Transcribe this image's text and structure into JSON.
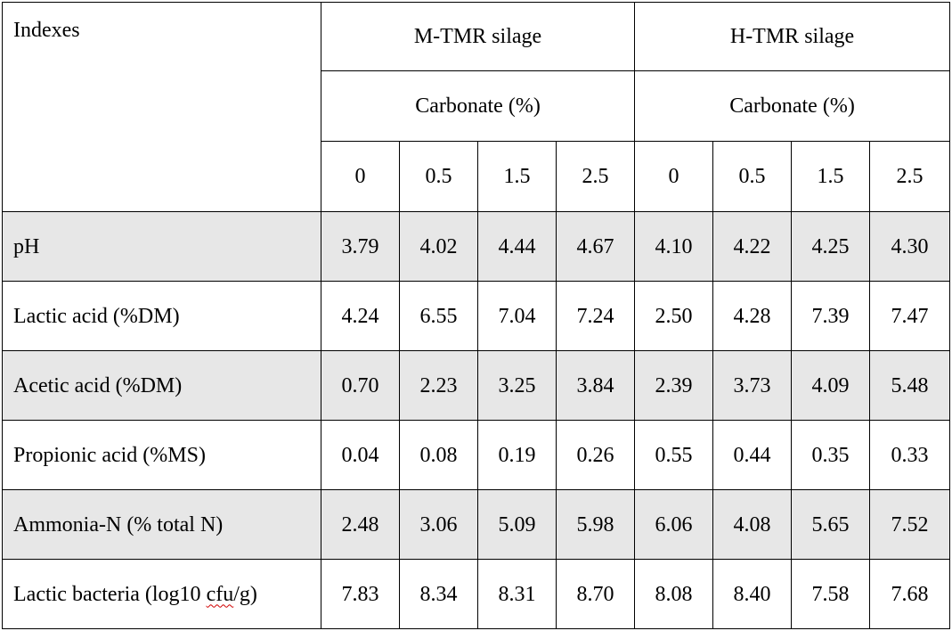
{
  "header": {
    "indexes": "Indexes",
    "groups": [
      "M-TMR silage",
      "H-TMR silage"
    ],
    "subheader": "Carbonate (%)",
    "levels": [
      "0",
      "0.5",
      "1.5",
      "2.5"
    ]
  },
  "rows": [
    {
      "label": "pH",
      "values": [
        "3.79",
        "4.02",
        "4.44",
        "4.67",
        "4.10",
        "4.22",
        "4.25",
        "4.30"
      ]
    },
    {
      "label": "Lactic acid (%DM)",
      "values": [
        "4.24",
        "6.55",
        "7.04",
        "7.24",
        "2.50",
        "4.28",
        "7.39",
        "7.47"
      ]
    },
    {
      "label": "Acetic acid (%DM)",
      "values": [
        "0.70",
        "2.23",
        "3.25",
        "3.84",
        "2.39",
        "3.73",
        "4.09",
        "5.48"
      ]
    },
    {
      "label": "Propionic acid (%MS)",
      "values": [
        "0.04",
        "0.08",
        "0.19",
        "0.26",
        "0.55",
        "0.44",
        "0.35",
        "0.33"
      ]
    },
    {
      "label": "Ammonia-N (% total N)",
      "values": [
        "2.48",
        "3.06",
        "5.09",
        "5.98",
        "6.06",
        "4.08",
        "5.65",
        "7.52"
      ]
    },
    {
      "label_prefix": "Lactic bacteria (log10 ",
      "label_marked": "cfu",
      "label_suffix": "/g)",
      "values": [
        "7.83",
        "8.34",
        "8.31",
        "8.70",
        "8.08",
        "8.40",
        "7.58",
        "7.68"
      ]
    }
  ],
  "colors": {
    "shade": "#e7e7e7",
    "border": "#000000",
    "spellcheck": "#d00000"
  }
}
